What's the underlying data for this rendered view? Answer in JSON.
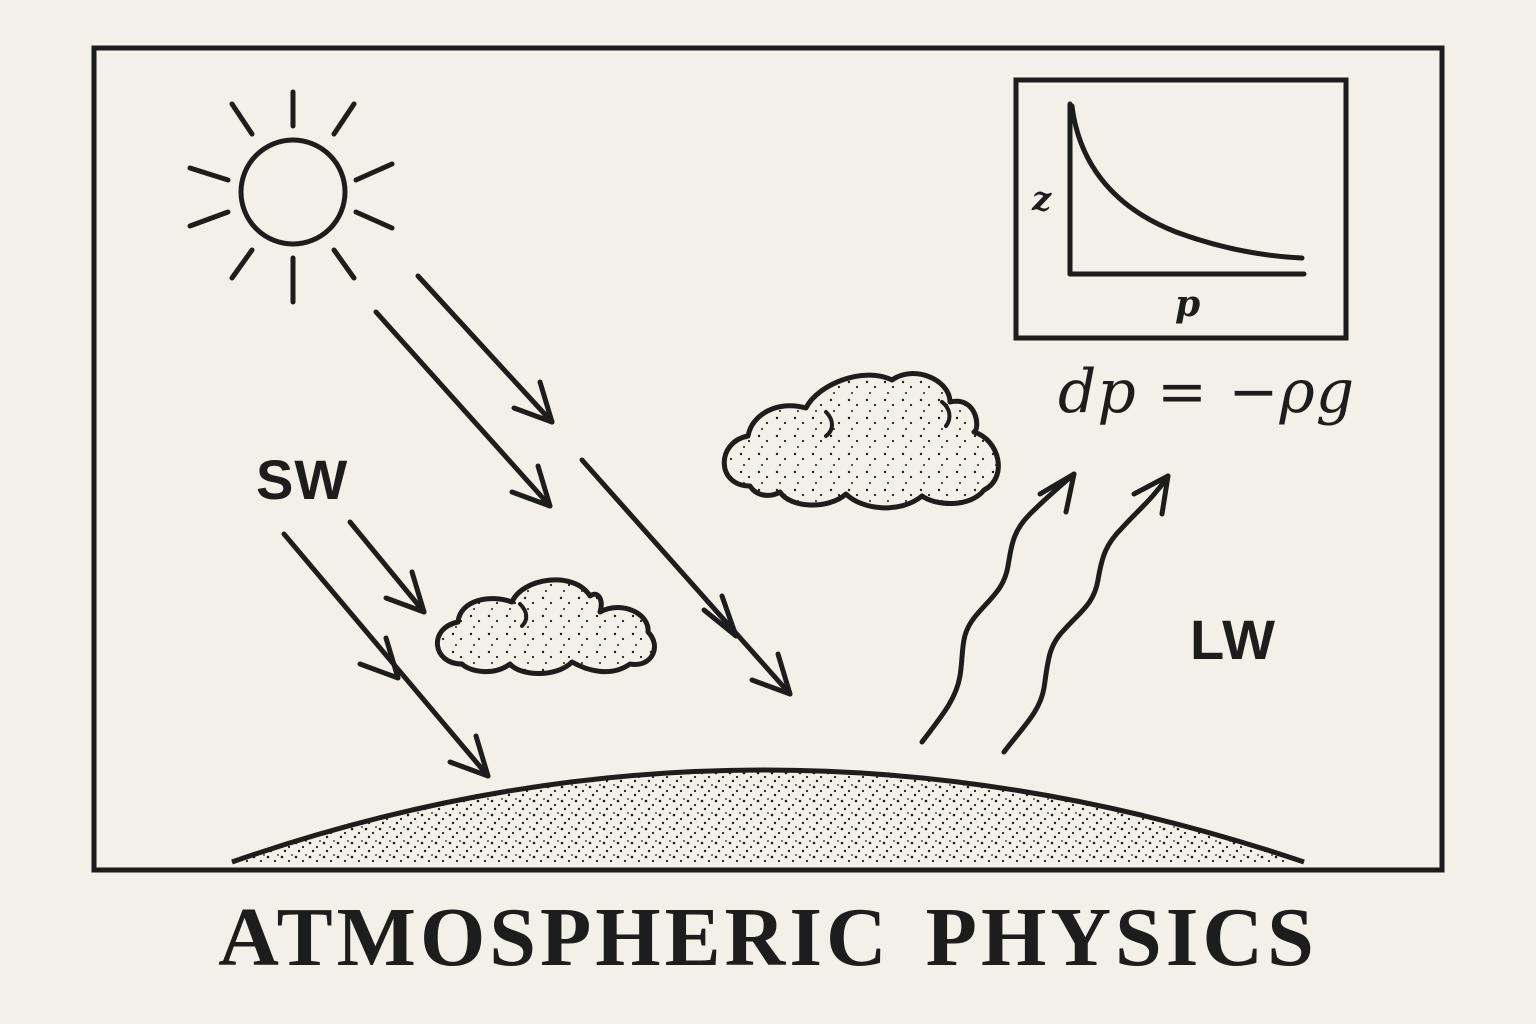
{
  "title": "ATMOSPHERIC PHYSICS",
  "labels": {
    "shortwave": "SW",
    "longwave": "LW"
  },
  "inset_plot": {
    "y_axis_label": "z",
    "x_axis_label": "p"
  },
  "equation": "dp = −ρg",
  "icons": [
    "sun-icon",
    "cloud-icon",
    "earth-surface-icon",
    "arrow-icon",
    "wavy-arrow-icon"
  ],
  "colors": {
    "background": "#f3f0e8",
    "ink": "#1d1d1d"
  }
}
